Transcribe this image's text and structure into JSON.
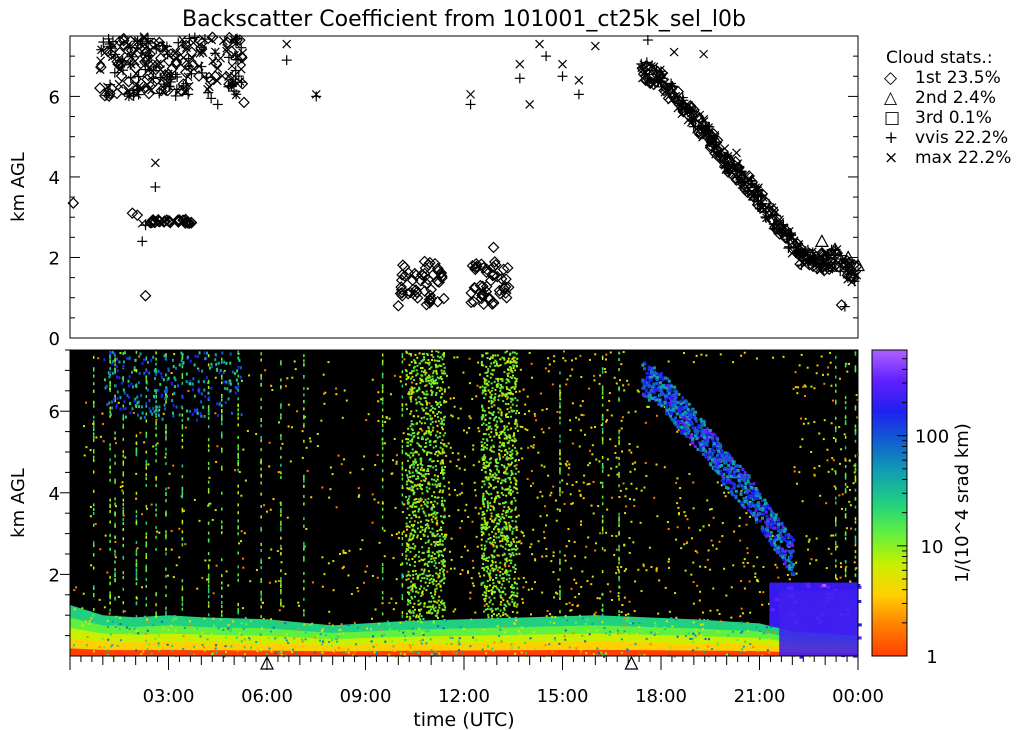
{
  "title": "Backscatter Coefficient from 101001_ct25k_sel_l0b",
  "chart_data": [
    {
      "type": "scatter",
      "title": "Backscatter Coefficient from 101001_ct25k_sel_l0b",
      "ylabel": "km AGL",
      "ylim": [
        0,
        7.5
      ],
      "xlim": [
        0,
        24
      ],
      "yticks": [
        "0",
        "2",
        "4",
        "6"
      ],
      "legend_title": "Cloud stats.:",
      "legend_position": "right",
      "series": [
        {
          "name": "1st",
          "percent": "23.5%",
          "symbol": "diamond",
          "points": [
            [
              0.1,
              3.35
            ],
            [
              1.9,
              3.1
            ],
            [
              2.05,
              3.05
            ],
            [
              2.3,
              1.05
            ],
            [
              2.5,
              2.9
            ],
            [
              2.7,
              2.9
            ],
            [
              3.0,
              2.9
            ],
            [
              3.3,
              2.88
            ],
            [
              3.6,
              2.88
            ],
            [
              2.5,
              6.3
            ],
            [
              2.0,
              6.7
            ],
            [
              3.0,
              6.55
            ],
            [
              4.3,
              6.4
            ],
            [
              5.3,
              5.85
            ],
            [
              10.0,
              0.8
            ],
            [
              10.3,
              1.1
            ],
            [
              10.5,
              1.6
            ],
            [
              10.8,
              1.9
            ],
            [
              11.0,
              1.2
            ],
            [
              11.2,
              0.9
            ],
            [
              11.3,
              1.6
            ],
            [
              12.3,
              0.9
            ],
            [
              12.5,
              1.3
            ],
            [
              12.7,
              1.7
            ],
            [
              12.9,
              2.25
            ],
            [
              13.1,
              1.1
            ],
            [
              13.3,
              1.0
            ],
            [
              23.5,
              0.82
            ]
          ]
        },
        {
          "name": "2nd",
          "percent": "2.4%",
          "symbol": "triangle",
          "points": [
            [
              22.9,
              2.4
            ],
            [
              23.3,
              2.2
            ],
            [
              23.7,
              2.0
            ],
            [
              24.0,
              1.8
            ]
          ]
        },
        {
          "name": "3rd",
          "percent": "0.1%",
          "symbol": "square",
          "points": []
        },
        {
          "name": "vvis",
          "percent": "22.2%",
          "symbol": "plus",
          "points": [
            [
              1.2,
              7.3
            ],
            [
              2.2,
              2.4
            ],
            [
              2.6,
              3.75
            ],
            [
              2.3,
              2.8
            ],
            [
              3.6,
              6.05
            ],
            [
              4.3,
              5.95
            ],
            [
              4.5,
              5.8
            ],
            [
              6.6,
              6.9
            ],
            [
              7.5,
              6.0
            ],
            [
              12.2,
              5.8
            ],
            [
              13.7,
              6.45
            ],
            [
              14.5,
              7.0
            ],
            [
              15.0,
              6.5
            ],
            [
              15.5,
              6.05
            ],
            [
              17.6,
              7.4
            ],
            [
              23.6,
              0.78
            ]
          ]
        },
        {
          "name": "max",
          "percent": "22.2%",
          "symbol": "cross",
          "points": [
            [
              2.6,
              4.35
            ],
            [
              2.2,
              2.85
            ],
            [
              6.6,
              7.3
            ],
            [
              7.5,
              6.05
            ],
            [
              12.2,
              6.05
            ],
            [
              13.7,
              6.8
            ],
            [
              14.0,
              5.8
            ],
            [
              14.3,
              7.3
            ],
            [
              15.0,
              6.8
            ],
            [
              15.5,
              6.4
            ],
            [
              16.0,
              7.25
            ],
            [
              18.4,
              7.1
            ],
            [
              19.3,
              7.05
            ],
            [
              20.3,
              4.6
            ]
          ]
        }
      ],
      "cloud_bands": [
        {
          "t0": 0.9,
          "t1": 5.4,
          "h0": 6.0,
          "h1": 7.5
        },
        {
          "t0": 17.4,
          "t1": 24.0,
          "profile": [
            [
              17.4,
              6.7
            ],
            [
              18.0,
              6.4
            ],
            [
              18.6,
              5.8
            ],
            [
              19.3,
              5.2
            ],
            [
              20.0,
              4.4
            ],
            [
              20.7,
              3.8
            ],
            [
              21.3,
              3.1
            ],
            [
              21.8,
              2.5
            ],
            [
              22.3,
              2.0
            ],
            [
              22.8,
              1.85
            ],
            [
              23.3,
              2.0
            ],
            [
              23.7,
              1.7
            ],
            [
              24.0,
              1.5
            ]
          ]
        }
      ]
    },
    {
      "type": "heatmap",
      "xlabel": "time (UTC)",
      "ylabel": "km AGL",
      "ylim": [
        0,
        7.5
      ],
      "xlim": [
        0,
        24
      ],
      "xticks": [
        "03:00",
        "06:00",
        "09:00",
        "12:00",
        "15:00",
        "18:00",
        "21:00",
        "00:00"
      ],
      "yticks": [
        "2",
        "4",
        "6"
      ],
      "colorbar_label": "1/(10^4 srad km)",
      "colorbar_ticks": [
        "1",
        "10",
        "100"
      ],
      "colorbar_scale": "log",
      "colormap": [
        "#ff4000",
        "#ff8000",
        "#ffd000",
        "#c8f000",
        "#60f040",
        "#20d080",
        "#10a0b0",
        "#1060d0",
        "#2020f0",
        "#6020ff",
        "#b060ff"
      ],
      "background": "#000000",
      "boundary_layer": [
        [
          0,
          1.25
        ],
        [
          1,
          1.0
        ],
        [
          2,
          0.95
        ],
        [
          3,
          1.0
        ],
        [
          4,
          0.95
        ],
        [
          6,
          0.9
        ],
        [
          8,
          0.75
        ],
        [
          10,
          0.85
        ],
        [
          12,
          0.9
        ],
        [
          14,
          0.95
        ],
        [
          16,
          1.0
        ],
        [
          17.5,
          0.95
        ],
        [
          19,
          0.9
        ],
        [
          21,
          0.8
        ],
        [
          22,
          0.6
        ],
        [
          24,
          0.5
        ]
      ],
      "precip_columns": [
        [
          10.2,
          11.4
        ],
        [
          12.5,
          13.6
        ]
      ],
      "dense_cloud_region": {
        "t0": 21.3,
        "t1": 24.0,
        "h0": 0.0,
        "h1": 1.8
      },
      "triangle_markers_time": [
        6.0,
        17.1
      ]
    }
  ],
  "legend": {
    "title": "Cloud stats.:",
    "entries": [
      {
        "symbol": "◇",
        "label": "1st 23.5%"
      },
      {
        "symbol": "△",
        "label": "2nd  2.4%"
      },
      {
        "symbol": "□",
        "label": "3rd  0.1%"
      },
      {
        "symbol": "+",
        "label": "vvis 22.2%"
      },
      {
        "symbol": "×",
        "label": "max 22.2%"
      }
    ]
  }
}
